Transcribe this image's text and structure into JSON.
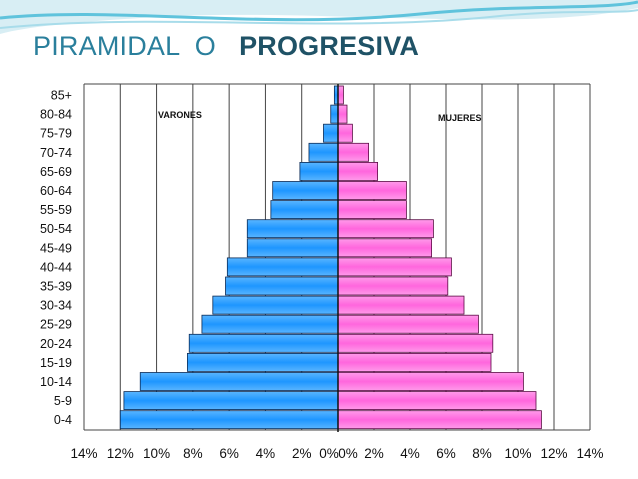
{
  "slide": {
    "title_part1": "PIRAMIDAL",
    "title_connector": "O",
    "title_part2": "PROGRESIVA"
  },
  "colors": {
    "title": "#2a7f9c",
    "title_emphasis": "#1f5266",
    "male": "#1e96ff",
    "female": "#ff66dd",
    "grid": "#333333"
  },
  "chart_data": {
    "type": "bar",
    "orientation": "horizontal",
    "layout": "population-pyramid",
    "categories": [
      "85+",
      "80-84",
      "75-79",
      "70-74",
      "65-69",
      "60-64",
      "55-59",
      "50-54",
      "45-49",
      "40-44",
      "35-39",
      "30-34",
      "25-29",
      "20-24",
      "15-19",
      "10-14",
      "5-9",
      "0-4"
    ],
    "series": [
      {
        "name": "VARONES",
        "side": "left",
        "color": "#1e96ff",
        "values": [
          0.2,
          0.4,
          0.8,
          1.6,
          2.1,
          3.6,
          3.7,
          5.0,
          5.0,
          6.1,
          6.2,
          6.9,
          7.5,
          8.2,
          8.3,
          10.9,
          11.8,
          12.0
        ]
      },
      {
        "name": "MUJERES",
        "side": "right",
        "color": "#ff66dd",
        "values": [
          0.3,
          0.5,
          0.8,
          1.7,
          2.2,
          3.8,
          3.8,
          5.3,
          5.2,
          6.3,
          6.1,
          7.0,
          7.8,
          8.6,
          8.5,
          10.3,
          11.0,
          11.3
        ]
      }
    ],
    "xlim": [
      -14,
      14
    ],
    "xticks": [
      "14%",
      "12%",
      "10%",
      "8%",
      "6%",
      "4%",
      "2%",
      "0%",
      "0%",
      "2%",
      "4%",
      "6%",
      "8%",
      "10%",
      "12%",
      "14%"
    ],
    "grid": true,
    "title": "",
    "xlabel": "",
    "ylabel": ""
  }
}
